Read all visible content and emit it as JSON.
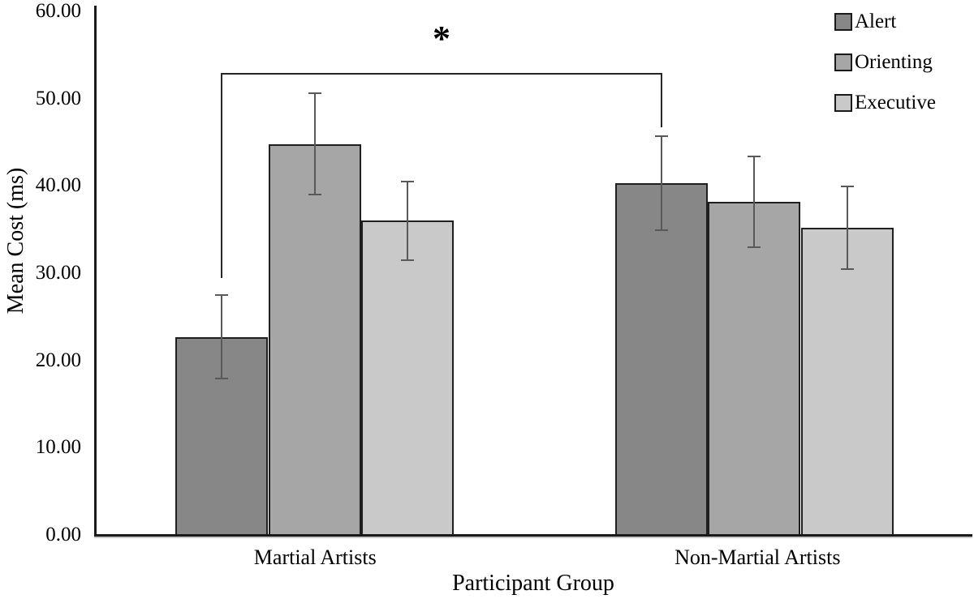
{
  "chart_data": {
    "type": "bar",
    "title": "",
    "ylabel": "Mean Cost (ms)",
    "xlabel": "Participant Group",
    "categories": [
      "Martial Artists",
      "Non-Martial Artists"
    ],
    "series": [
      {
        "name": "Alert",
        "color": "#878787",
        "values": [
          22.7,
          40.3
        ],
        "errors": [
          4.8,
          5.4
        ]
      },
      {
        "name": "Orienting",
        "color": "#a6a6a6",
        "values": [
          44.8,
          38.2
        ],
        "errors": [
          5.8,
          5.2
        ]
      },
      {
        "name": "Executive",
        "color": "#c9c9c9",
        "values": [
          36.0,
          35.2
        ],
        "errors": [
          4.5,
          4.7
        ]
      }
    ],
    "ylim": [
      0,
      60
    ],
    "ytick_step": 10,
    "ytick_labels": [
      "0.00",
      "10.00",
      "20.00",
      "30.00",
      "40.00",
      "50.00",
      "60.00"
    ],
    "grid": false,
    "legend_position": "top-right",
    "annotation": {
      "label": "*",
      "series": "Alert",
      "from_category": "Martial Artists",
      "to_category": "Non-Martial Artists"
    },
    "colors": {
      "axis": "#1a1a1a",
      "bar_border": "#1f1f1f",
      "error_bar": "#595959",
      "bracket": "#262626",
      "text": "#000000"
    }
  }
}
